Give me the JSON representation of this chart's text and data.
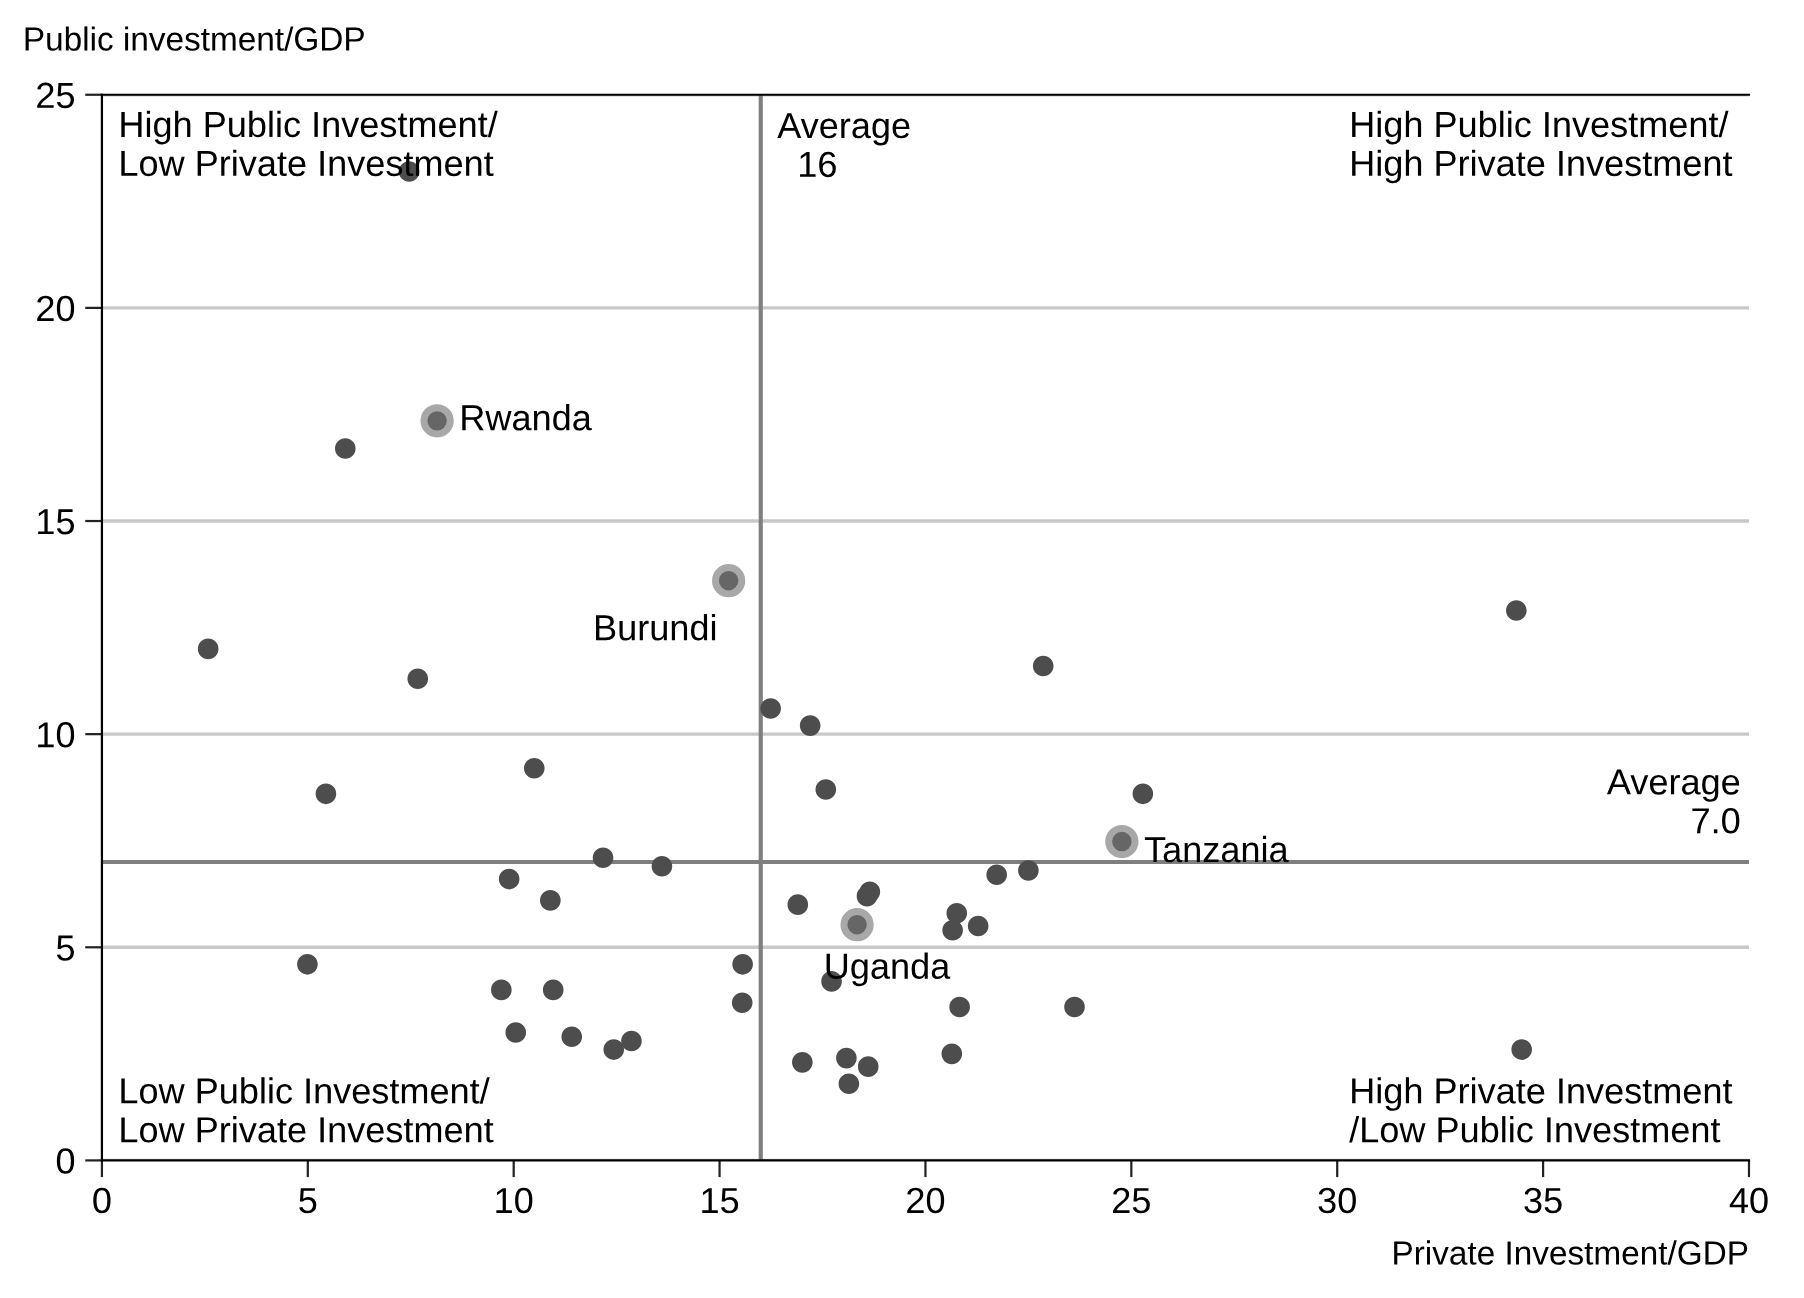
{
  "chart_data": {
    "type": "scatter",
    "xlabel": "Private Investment/GDP",
    "ylabel": "Public investment/GDP",
    "series": [
      {
        "color": "#4d4d4d",
        "x": [
          7.46,
          5.91,
          2.58,
          7.67,
          5.44,
          10.5,
          12.17,
          13.6,
          9.89,
          10.89,
          4.99,
          9.7,
          10.96,
          15.56,
          15.55,
          10.05,
          11.41,
          12.43,
          12.86,
          16.24,
          17.2,
          17.58,
          16.9,
          18.65,
          18.58,
          17.72,
          17.01,
          18.08,
          18.61,
          18.14,
          22.86,
          25.28,
          34.35,
          21.73,
          22.5,
          20.76,
          20.66,
          21.28,
          20.83,
          23.62,
          20.64,
          34.48
        ],
        "values": [
          23.2,
          16.7,
          12.0,
          11.3,
          8.6,
          9.2,
          7.1,
          6.9,
          6.6,
          6.1,
          4.6,
          4.0,
          4.0,
          4.6,
          3.7,
          3.0,
          2.9,
          2.6,
          2.8,
          10.6,
          10.2,
          8.7,
          6.0,
          6.3,
          6.2,
          4.2,
          2.3,
          2.4,
          2.2,
          1.8,
          11.6,
          8.6,
          12.9,
          6.7,
          6.8,
          5.8,
          5.4,
          5.5,
          3.6,
          3.6,
          2.5,
          2.6
        ]
      },
      {
        "color": "#666666",
        "x": [
          8.14,
          15.22,
          24.77,
          18.34
        ],
        "values": [
          17.35,
          13.6,
          7.48,
          5.53
        ]
      }
    ],
    "annotations": [
      {
        "text": "Rwanda",
        "x": 8.14,
        "y": 17.35
      },
      {
        "text": "Burundi",
        "x": 15.22,
        "y": 13.6
      },
      {
        "text": "Tanzania",
        "x": 24.77,
        "y": 7.48
      },
      {
        "text": "Uganda",
        "x": 18.34,
        "y": 5.53
      },
      "High Public Investment/\nLow Private Investment",
      "High Public Investment/\nHigh Private Investment",
      "Low Public Investment/\nLow Private Investment",
      "High Private Investment\n/Low Public Investment"
    ],
    "ref_lines": [
      {
        "axis": "x",
        "value": 16,
        "label": "Average\n  16",
        "color": "#7f7f7f"
      },
      {
        "axis": "y",
        "value": 7.0,
        "label": "Average\n7.0",
        "color": "#7f7f7f"
      }
    ],
    "xlim": [
      0,
      40
    ],
    "ylim": [
      0,
      25
    ],
    "xticks": [
      0,
      5,
      10,
      15,
      20,
      25,
      30,
      35,
      40
    ],
    "yticks": [
      0,
      5,
      10,
      15,
      20,
      25
    ],
    "grid": "y",
    "marker": "circle"
  }
}
